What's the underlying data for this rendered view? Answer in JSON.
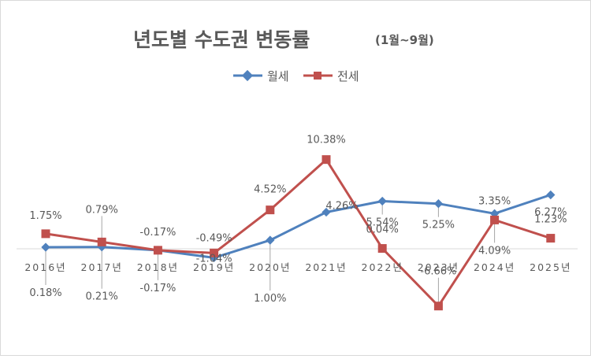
{
  "chart_data": {
    "type": "line",
    "title": "년도별 수도권 변동률",
    "subtitle": "(1월~9월)",
    "categories": [
      "2016년",
      "2017년",
      "2018년",
      "2019년",
      "2020년",
      "2021년",
      "2022년",
      "2023년",
      "2024년",
      "2025년"
    ],
    "series": [
      {
        "name": "월세",
        "color": "#4f81bd",
        "marker": "diamond",
        "values": [
          0.18,
          0.21,
          -0.17,
          -1.04,
          1.0,
          4.26,
          5.54,
          5.25,
          4.09,
          6.27
        ],
        "labels": [
          "0.18%",
          "0.21%",
          "-0.17%",
          "-1.04%",
          "1.00%",
          "4.26%",
          "5.54%",
          "5.25%",
          "4.09%",
          "6.27%"
        ]
      },
      {
        "name": "전세",
        "color": "#c0504d",
        "marker": "square",
        "values": [
          1.75,
          0.79,
          -0.17,
          -0.49,
          4.52,
          10.38,
          0.04,
          -6.66,
          3.35,
          1.23
        ],
        "labels": [
          "1.75%",
          "0.79%",
          "-0.17%",
          "-0.49%",
          "4.52%",
          "10.38%",
          "0.04%",
          "-6.66%",
          "3.35%",
          "1.23%"
        ]
      }
    ],
    "ylim": [
      -6.66,
      10.38
    ],
    "legend_position": "top",
    "grid": false
  }
}
